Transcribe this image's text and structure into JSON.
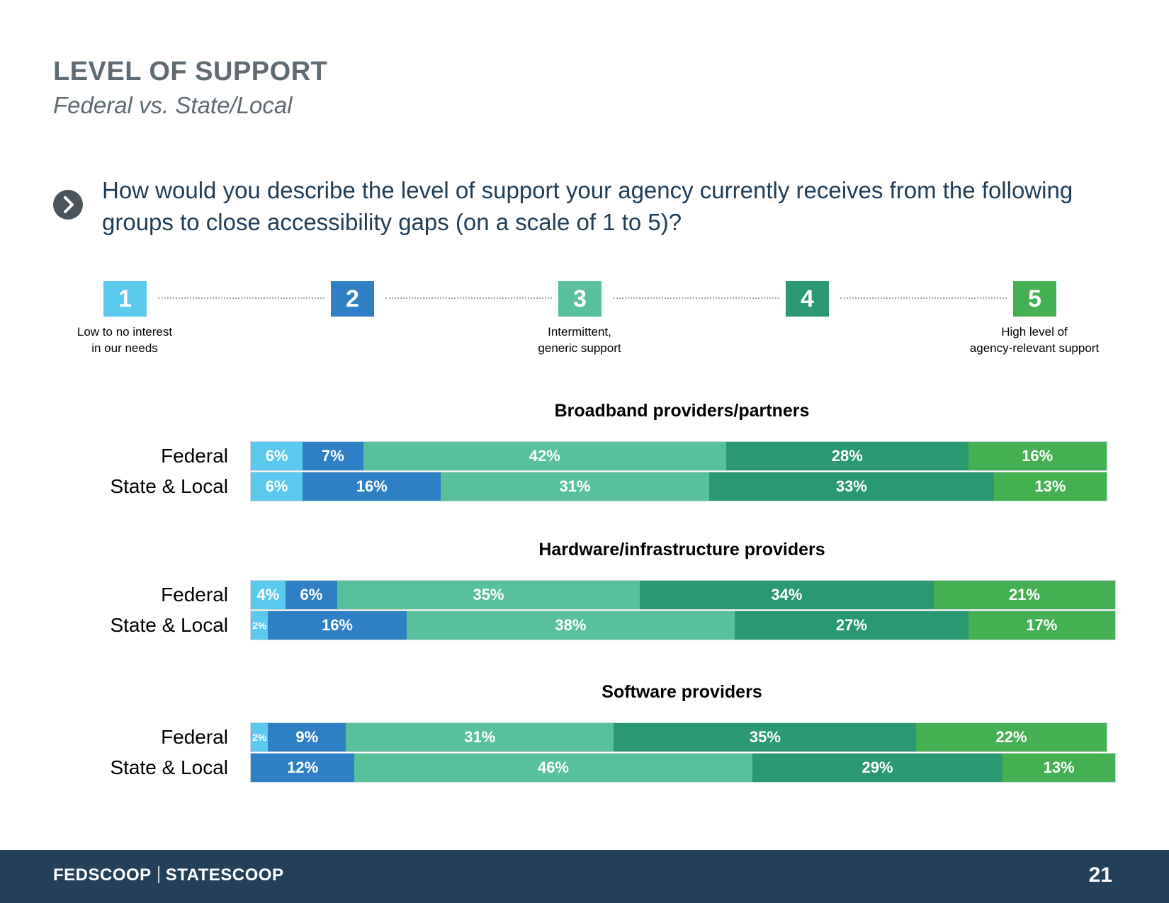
{
  "header": {
    "title": "LEVEL OF SUPPORT",
    "subtitle": "Federal vs. State/Local"
  },
  "question": {
    "icon": "chevron-right-icon",
    "text": "How would you describe the level of support your agency currently receives from the following groups to close accessibility gaps (on a scale of 1 to 5)?"
  },
  "scale": {
    "items": [
      {
        "number": "1",
        "color": "#5bc8ee",
        "desc": "Low to no interest\nin our needs"
      },
      {
        "number": "2",
        "color": "#2e7fc4",
        "desc": ""
      },
      {
        "number": "3",
        "color": "#58c19c",
        "desc": "Intermittent,\ngeneric support"
      },
      {
        "number": "4",
        "color": "#2a9870",
        "desc": ""
      },
      {
        "number": "5",
        "color": "#44b052",
        "desc": "High level of\nagency-relevant support"
      }
    ]
  },
  "chart_data": {
    "type": "bar",
    "orientation": "horizontal",
    "stacked": true,
    "series_colors": [
      "#5bc8ee",
      "#2e7fc4",
      "#58c19c",
      "#2a9870",
      "#44b052"
    ],
    "groups": [
      {
        "title": "Broadband providers/partners",
        "rows": [
          {
            "label": "Federal",
            "values": [
              6,
              7,
              42,
              28,
              16
            ]
          },
          {
            "label": "State & Local",
            "values": [
              6,
              16,
              31,
              33,
              13
            ]
          }
        ]
      },
      {
        "title": "Hardware/infrastructure providers",
        "rows": [
          {
            "label": "Federal",
            "values": [
              4,
              6,
              35,
              34,
              21
            ]
          },
          {
            "label": "State & Local",
            "values": [
              2,
              16,
              38,
              27,
              17
            ]
          }
        ]
      },
      {
        "title": "Software providers",
        "rows": [
          {
            "label": "Federal",
            "values": [
              2,
              9,
              31,
              35,
              22
            ]
          },
          {
            "label": "State & Local",
            "values": [
              0,
              12,
              46,
              29,
              13
            ]
          }
        ]
      }
    ]
  },
  "footer": {
    "brand_left": "FEDSCOOP",
    "brand_right": "STATESCOOP",
    "page_number": "21"
  }
}
